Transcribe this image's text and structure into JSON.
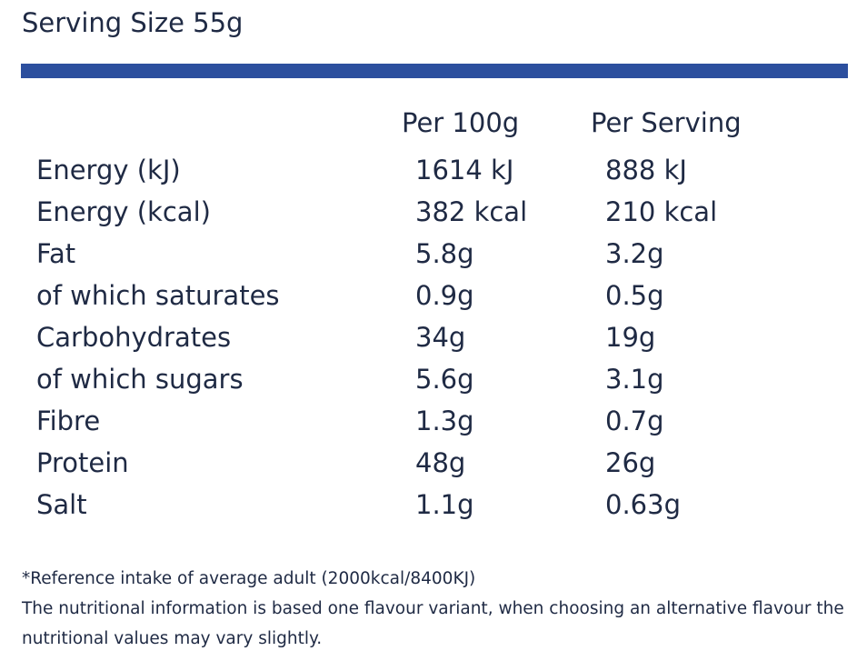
{
  "header": {
    "serving_size": "Serving Size 55g"
  },
  "colors": {
    "accent": "#2c4f9e",
    "text": "#1f2a44"
  },
  "table": {
    "headers": [
      "Per 100g",
      "Per Serving"
    ],
    "rows": [
      {
        "name": "Energy (kJ)",
        "per_100g": "1614 kJ",
        "per_serving": "888 kJ"
      },
      {
        "name": "Energy (kcal)",
        "per_100g": "382 kcal",
        "per_serving": "210 kcal"
      },
      {
        "name": "Fat",
        "per_100g": "5.8g",
        "per_serving": "3.2g"
      },
      {
        "name": "of which saturates",
        "per_100g": "0.9g",
        "per_serving": "0.5g"
      },
      {
        "name": "Carbohydrates",
        "per_100g": "34g",
        "per_serving": "19g"
      },
      {
        "name": "of which sugars",
        "per_100g": "5.6g",
        "per_serving": "3.1g"
      },
      {
        "name": "Fibre",
        "per_100g": "1.3g",
        "per_serving": "0.7g"
      },
      {
        "name": "Protein",
        "per_100g": "48g",
        "per_serving": "26g"
      },
      {
        "name": "Salt",
        "per_100g": "1.1g",
        "per_serving": "0.63g"
      }
    ]
  },
  "notes": {
    "reference_intake": "*Reference intake of average adult (2000kcal/8400KJ)",
    "variation": "The nutritional information is based one flavour variant, when choosing an alternative flavour the nutritional values may vary slightly."
  }
}
